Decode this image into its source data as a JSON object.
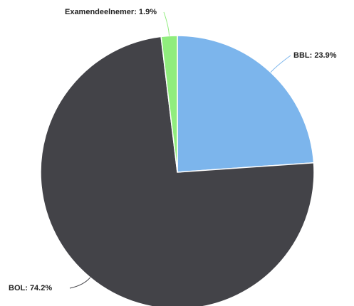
{
  "chart_data": {
    "type": "pie",
    "values": [
      23.9,
      74.2,
      1.9
    ],
    "value_labels": [
      "BBL: 23.9%",
      "BOL: 74.2%",
      "Examendeelnemer: 1.9%"
    ],
    "colors": [
      "#7cb5ec",
      "#434348",
      "#90ed7d"
    ]
  }
}
